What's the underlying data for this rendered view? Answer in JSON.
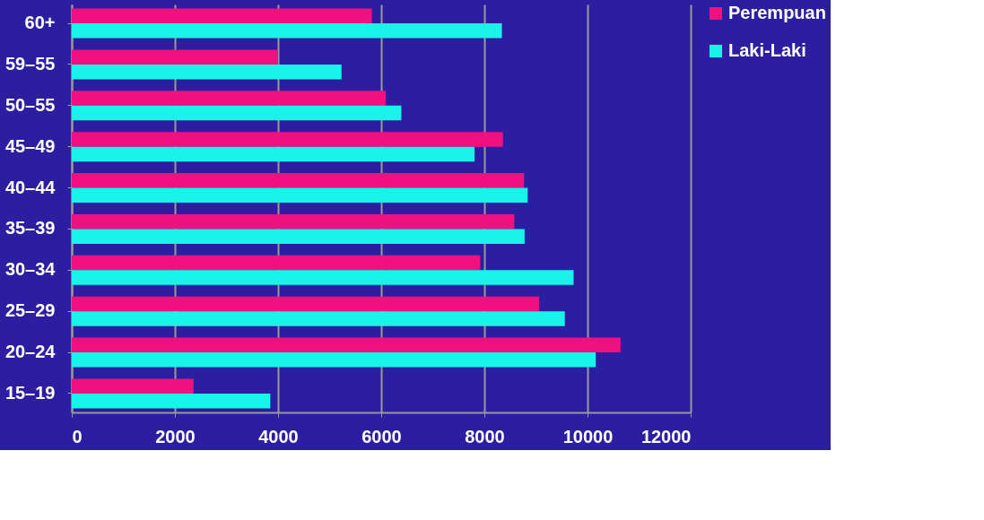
{
  "chart_data": {
    "type": "bar",
    "orientation": "horizontal",
    "categories": [
      "60+",
      "59–55",
      "50–55",
      "45–49",
      "40–44",
      "35–39",
      "30–34",
      "25–29",
      "20–24",
      "15–19"
    ],
    "series": [
      {
        "name": "Perempuan",
        "color": "#f0107f",
        "values": [
          5820,
          4000,
          6090,
          8360,
          8770,
          8580,
          7920,
          9060,
          10640,
          2360
        ]
      },
      {
        "name": "Laki-Laki",
        "color": "#18f5e8",
        "values": [
          8340,
          5230,
          6390,
          7810,
          8840,
          8780,
          9730,
          9560,
          10160,
          3850
        ]
      }
    ],
    "xlim": [
      0,
      12000
    ],
    "xticks": [
      0,
      2000,
      4000,
      6000,
      8000,
      10000,
      12000
    ],
    "grid": "x",
    "legend": "right"
  }
}
